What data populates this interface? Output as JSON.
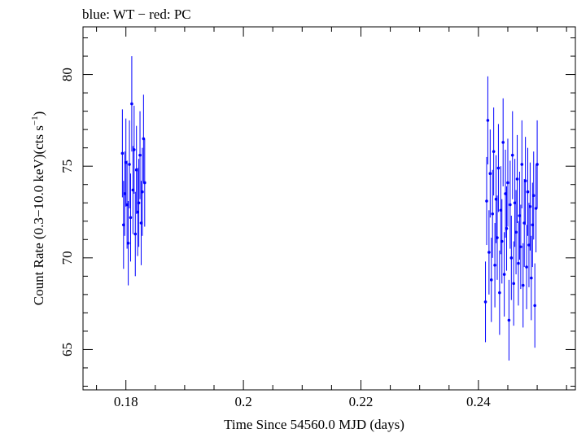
{
  "chart_data": {
    "type": "scatter",
    "title": "blue: WT − red: PC",
    "xlabel": "Time Since 54560.0 MJD (days)",
    "ylabel_main": "Count Rate (0.3−10.0 keV)(cts s",
    "ylabel_sup": "−1",
    "ylabel_close": ")",
    "xlim": [
      0.1727,
      0.2565
    ],
    "ylim": [
      62.8,
      82.6
    ],
    "xticks": [
      0.18,
      0.2,
      0.22,
      0.24
    ],
    "xtick_labels": [
      "0.18",
      "0.2",
      "0.22",
      "0.24"
    ],
    "yticks": [
      65,
      70,
      75,
      80
    ],
    "ytick_labels": [
      "65",
      "70",
      "75",
      "80"
    ],
    "grid": false,
    "series": [
      {
        "color": "#0000ff",
        "x": [
          0.1794,
          0.1796,
          0.1798,
          0.18,
          0.1802,
          0.1804,
          0.1806,
          0.1808,
          0.181,
          0.1812,
          0.1814,
          0.1816,
          0.1818,
          0.182,
          0.1822,
          0.1824,
          0.1826,
          0.1828,
          0.183,
          0.1832,
          0.2412,
          0.2414,
          0.2416,
          0.2418,
          0.242,
          0.2422,
          0.2424,
          0.2426,
          0.2428,
          0.243,
          0.2432,
          0.2434,
          0.2436,
          0.2438,
          0.244,
          0.2442,
          0.2444,
          0.2446,
          0.2448,
          0.245,
          0.2452,
          0.2454,
          0.2456,
          0.2458,
          0.246,
          0.2462,
          0.2464,
          0.2466,
          0.2468,
          0.247,
          0.2472,
          0.2474,
          0.2476,
          0.2478,
          0.248,
          0.2482,
          0.2484,
          0.2486,
          0.2488,
          0.249,
          0.2492,
          0.2494,
          0.2496,
          0.2498,
          0.25
        ],
        "y": [
          75.7,
          71.8,
          73.5,
          75.2,
          72.9,
          70.8,
          75.1,
          72.2,
          78.4,
          73.7,
          75.9,
          71.3,
          74.8,
          72.5,
          73.0,
          75.6,
          71.9,
          73.6,
          76.5,
          74.1,
          67.6,
          73.1,
          77.5,
          70.3,
          74.6,
          68.8,
          72.4,
          75.8,
          69.6,
          73.2,
          71.1,
          74.9,
          68.1,
          72.6,
          70.9,
          76.3,
          69.1,
          73.5,
          71.6,
          74.1,
          66.6,
          72.9,
          70.0,
          75.6,
          68.6,
          73.0,
          71.4,
          74.3,
          69.7,
          72.3,
          70.6,
          75.1,
          68.5,
          71.9,
          74.2,
          69.5,
          73.6,
          70.7,
          72.8,
          68.9,
          71.8,
          73.4,
          67.4,
          72.7,
          75.1
        ],
        "err": [
          2.4,
          2.4,
          2.3,
          2.4,
          2.4,
          2.3,
          2.4,
          2.4,
          2.6,
          2.4,
          2.4,
          2.3,
          2.4,
          2.4,
          2.4,
          2.4,
          2.3,
          2.4,
          2.4,
          2.4,
          2.2,
          2.4,
          2.4,
          2.3,
          2.4,
          2.3,
          2.4,
          2.4,
          2.3,
          2.4,
          2.3,
          2.4,
          2.3,
          2.4,
          2.3,
          2.4,
          2.3,
          2.4,
          2.3,
          2.4,
          2.2,
          2.4,
          2.3,
          2.4,
          2.3,
          2.4,
          2.3,
          2.4,
          2.3,
          2.4,
          2.3,
          2.4,
          2.3,
          2.4,
          2.4,
          2.3,
          2.4,
          2.3,
          2.4,
          2.3,
          2.3,
          2.4,
          2.3,
          2.4,
          2.4
        ]
      }
    ]
  }
}
